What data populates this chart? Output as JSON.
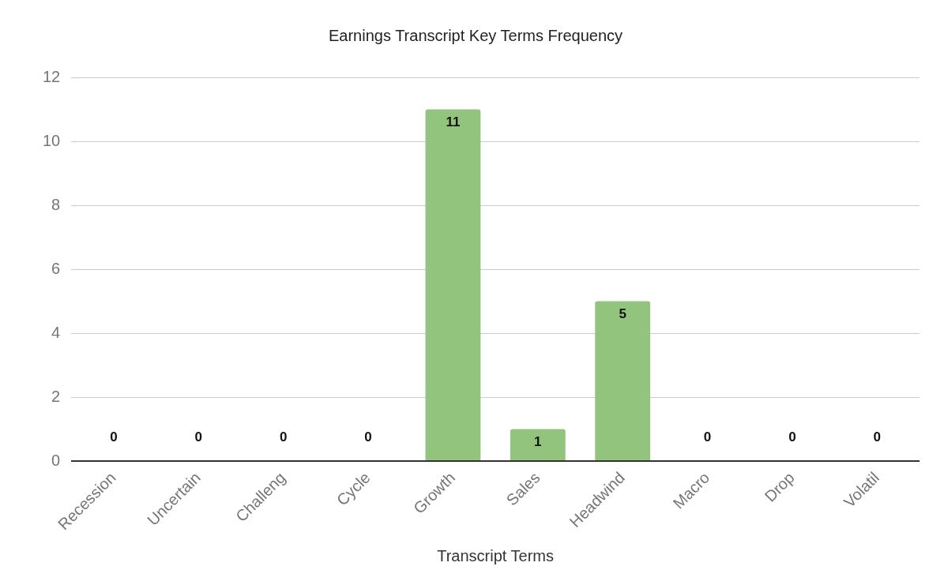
{
  "chart_data": {
    "type": "bar",
    "title": "Earnings Transcript Key Terms Frequency",
    "xlabel": "Transcript Terms",
    "categories": [
      "Recession",
      "Uncertain",
      "Challeng",
      "Cycle",
      "Growth",
      "Sales",
      "Headwind",
      "Macro",
      "Drop",
      "Volatil"
    ],
    "values": [
      0,
      0,
      0,
      0,
      11,
      1,
      5,
      0,
      0,
      0
    ],
    "color": "#93c47d",
    "ylim": [
      0,
      12
    ],
    "yticks": [
      0,
      2,
      4,
      6,
      8,
      10,
      12
    ],
    "grid": "y",
    "data_labels": true,
    "legend": false
  }
}
